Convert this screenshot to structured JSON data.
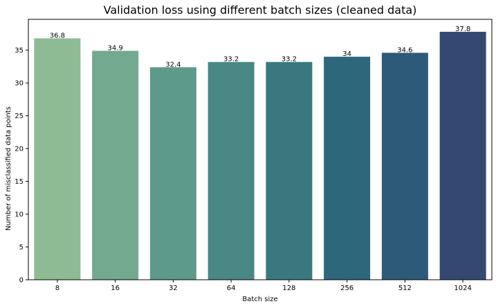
{
  "chart_data": {
    "type": "bar",
    "title": "Validation loss using different batch sizes (cleaned data)",
    "xlabel": "Batch size",
    "ylabel": "Number of misclassified data points",
    "categories": [
      "8",
      "16",
      "32",
      "64",
      "128",
      "256",
      "512",
      "1024"
    ],
    "values": [
      36.8,
      34.9,
      32.4,
      33.2,
      33.2,
      34,
      34.6,
      37.8
    ],
    "data_labels": [
      "36.8",
      "34.9",
      "32.4",
      "33.2",
      "33.2",
      "34",
      "34.6",
      "37.8"
    ],
    "colors": [
      "#8ebb93",
      "#72a98f",
      "#5e9a8c",
      "#4a8886",
      "#3a7880",
      "#2d677c",
      "#2e5a7a",
      "#344872"
    ],
    "yticks": [
      0,
      5,
      10,
      15,
      20,
      25,
      30,
      35
    ],
    "ylim": [
      0,
      39.7
    ],
    "grid": false,
    "legend": "none"
  }
}
